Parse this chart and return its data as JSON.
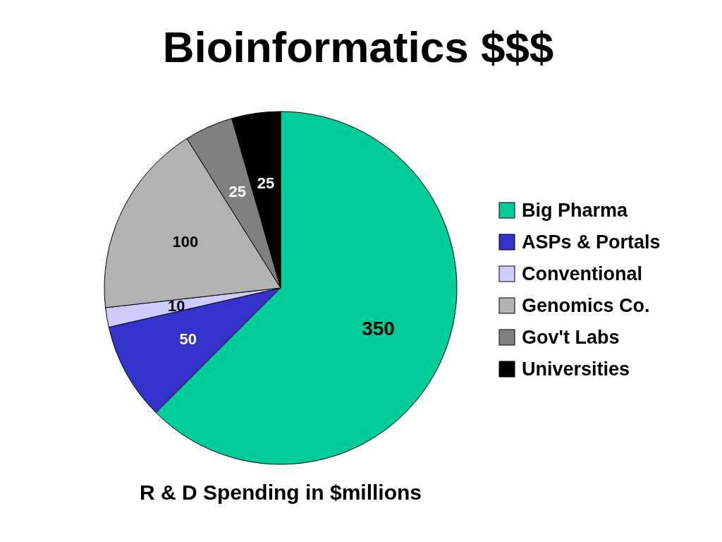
{
  "chart_data": {
    "type": "pie",
    "title": "Bioinformatics $$$",
    "annotations": [
      "R & D Spending in $millions"
    ],
    "categories": [
      "Big Pharma",
      "ASPs & Portals",
      "Conventional",
      "Genomics Co.",
      "Gov't Labs",
      "Universities"
    ],
    "values": [
      350,
      50,
      10,
      100,
      25,
      25
    ],
    "colors": [
      "#00cc99",
      "#3333cc",
      "#ccccff",
      "#b2b2b2",
      "#808080",
      "#000000"
    ],
    "data_labels": true,
    "legend": "right"
  }
}
